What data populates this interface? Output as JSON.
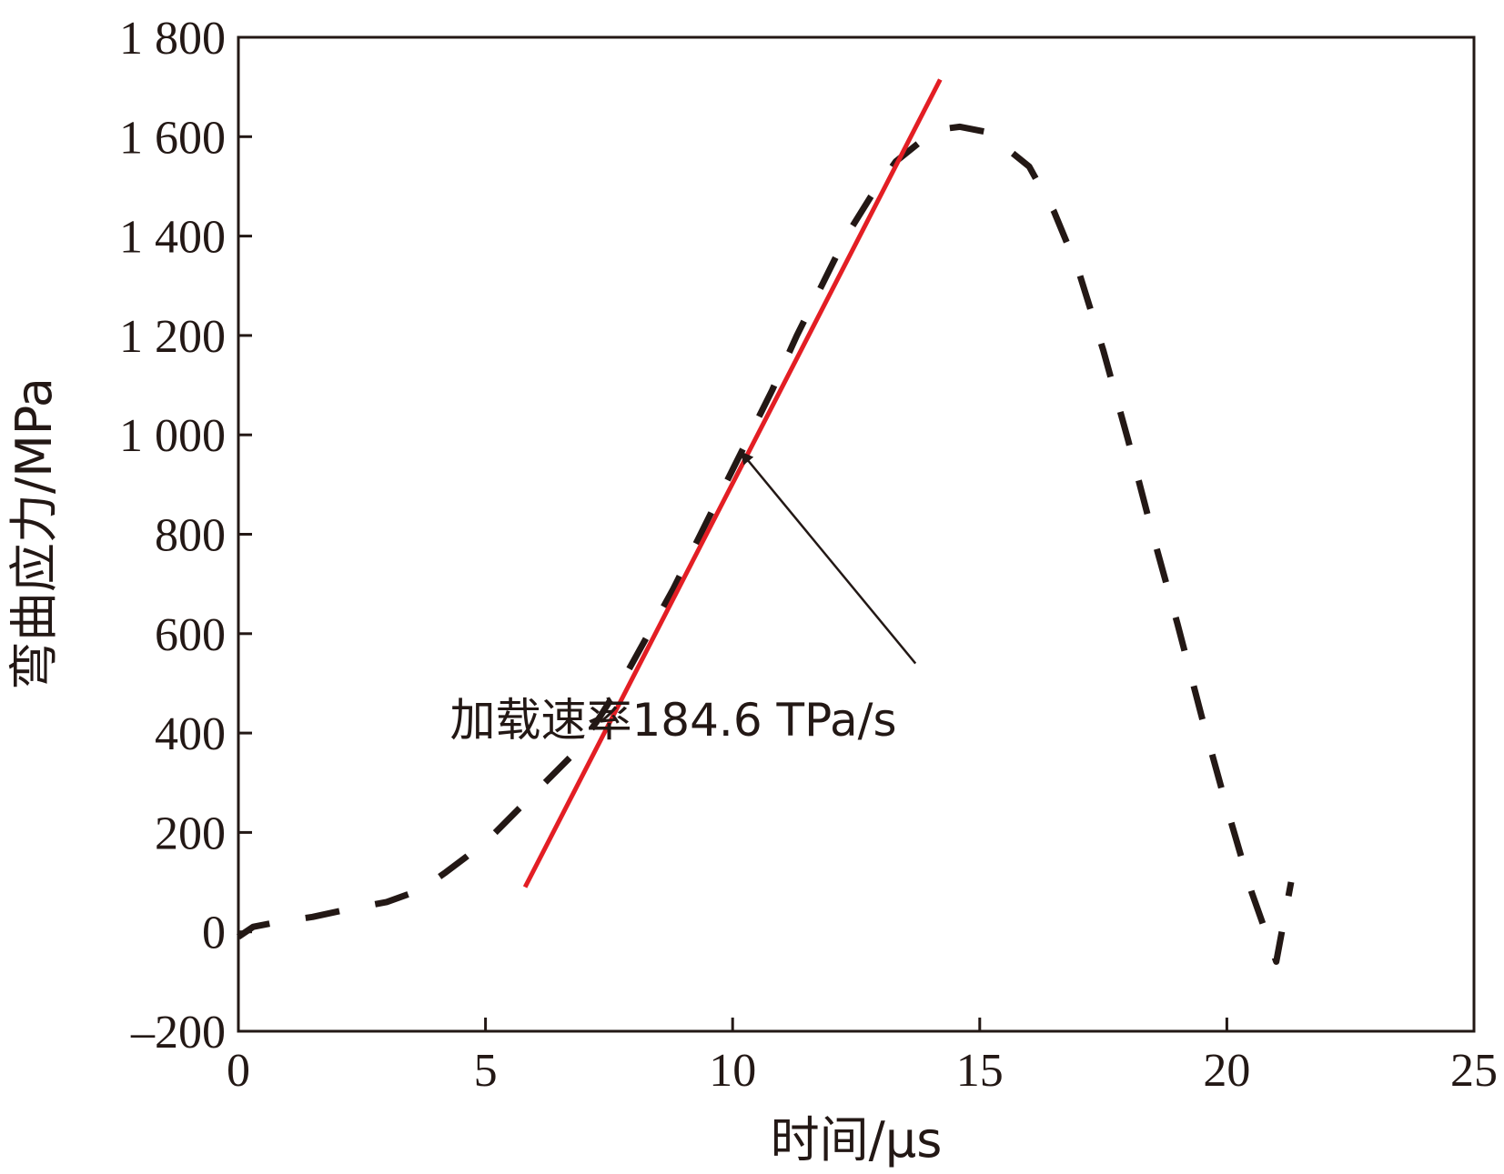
{
  "chart_data": {
    "type": "line",
    "title": "",
    "xlabel": "时间/μs",
    "ylabel": "弯曲应力/MPa",
    "xlim": [
      0,
      25
    ],
    "ylim": [
      -200,
      1800
    ],
    "xticks": [
      0,
      5,
      10,
      15,
      20,
      25
    ],
    "xtick_labels": [
      "0",
      "5",
      "10",
      "15",
      "20",
      "25"
    ],
    "yticks": [
      -200,
      0,
      200,
      400,
      600,
      800,
      1000,
      1200,
      1400,
      1600,
      1800
    ],
    "ytick_labels": [
      "–200",
      "0",
      "200",
      "400",
      "600",
      "800",
      "1 000",
      "1 200",
      "1 400",
      "1 600",
      "1 800"
    ],
    "grid": false,
    "series": [
      {
        "style": "dashed",
        "color": "#231815",
        "x": [
          0.0,
          0.3,
          0.8,
          1.5,
          2.2,
          3.0,
          3.7,
          4.2,
          4.6,
          5.1,
          5.6,
          6.2,
          6.8,
          7.3,
          7.8,
          8.3,
          8.8,
          9.3,
          9.8,
          10.3,
          10.8,
          11.3,
          11.8,
          12.3,
          12.8,
          13.3,
          13.8,
          14.2,
          14.6,
          15.1,
          15.5,
          16.0,
          16.5,
          17.0,
          17.5,
          18.0,
          18.5,
          19.0,
          19.5,
          20.0,
          20.5,
          21.0,
          21.3
        ],
        "y": [
          -10,
          10,
          20,
          30,
          45,
          60,
          85,
          120,
          150,
          190,
          240,
          300,
          360,
          430,
          510,
          600,
          690,
          790,
          890,
          990,
          1090,
          1200,
          1300,
          1400,
          1480,
          1550,
          1590,
          1615,
          1620,
          1610,
          1580,
          1540,
          1450,
          1330,
          1170,
          990,
          800,
          620,
          430,
          250,
          80,
          -60,
          100
        ]
      },
      {
        "style": "solid",
        "color": "#e31e24",
        "x": [
          5.8,
          14.2
        ],
        "y": [
          90,
          1715
        ]
      }
    ],
    "annotations": [
      {
        "text": "加载速率184.6 TPa/s",
        "arrow_to": {
          "x": 10.3,
          "y": 950
        },
        "arrow_from": {
          "x": 13.7,
          "y": 540
        },
        "text_at": {
          "x": 8.8,
          "y": 395
        }
      }
    ]
  }
}
